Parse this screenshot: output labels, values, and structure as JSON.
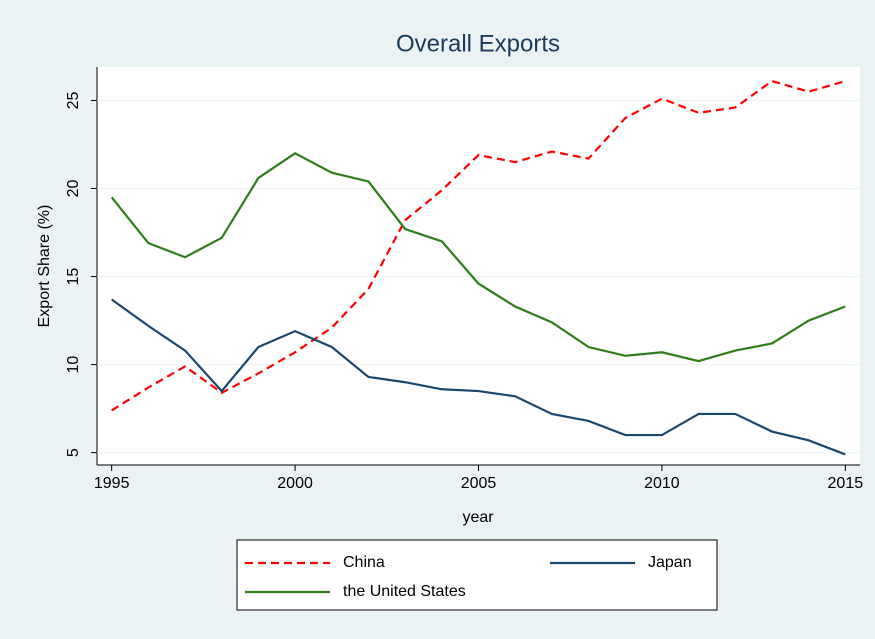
{
  "chart_data": {
    "type": "line",
    "title": "Overall Exports",
    "xlabel": "year",
    "ylabel": "Export Share (%)",
    "x": [
      1995,
      1996,
      1997,
      1998,
      1999,
      2000,
      2001,
      2002,
      2003,
      2004,
      2005,
      2006,
      2007,
      2008,
      2009,
      2010,
      2011,
      2012,
      2013,
      2014,
      2015
    ],
    "series": [
      {
        "name": "China",
        "color": "#ff0000",
        "dash": true,
        "values": [
          7.4,
          8.7,
          9.9,
          8.4,
          9.5,
          10.7,
          12.1,
          14.3,
          18.2,
          19.9,
          21.9,
          21.5,
          22.1,
          21.7,
          24.0,
          25.1,
          24.3,
          24.6,
          26.1,
          25.5,
          26.1
        ]
      },
      {
        "name": "Japan",
        "color": "#1a476f",
        "dash": false,
        "values": [
          13.7,
          12.2,
          10.8,
          8.5,
          11.0,
          11.9,
          11.0,
          9.3,
          9.0,
          8.6,
          8.5,
          8.2,
          7.2,
          6.8,
          6.0,
          6.0,
          7.2,
          7.2,
          6.2,
          5.7,
          4.9
        ]
      },
      {
        "name": "the United States",
        "color": "#2e7d1a",
        "dash": false,
        "values": [
          19.5,
          16.9,
          16.1,
          17.2,
          20.6,
          22.0,
          20.9,
          20.4,
          17.7,
          17.0,
          14.6,
          13.3,
          12.4,
          11.0,
          10.5,
          10.7,
          10.2,
          10.8,
          11.2,
          12.5,
          13.3
        ]
      }
    ],
    "xlim": [
      1994.6,
      2015.4
    ],
    "ylim": [
      4.3,
      26.9
    ],
    "xticks": [
      1995,
      2000,
      2005,
      2010,
      2015
    ],
    "yticks": [
      5,
      10,
      15,
      20,
      25
    ],
    "grid": true
  }
}
